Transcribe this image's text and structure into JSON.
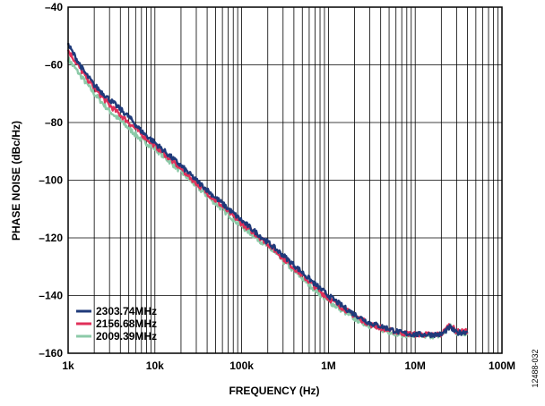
{
  "chart_data": {
    "type": "line",
    "xlabel": "FREQUENCY (Hz)",
    "ylabel": "PHASE NOISE (dBc/Hz)",
    "x_scale": "log",
    "xlim": [
      1000,
      100000000
    ],
    "ylim": [
      -160,
      -40
    ],
    "x_ticks": [
      {
        "value": 1000,
        "label": "1k"
      },
      {
        "value": 10000,
        "label": "10k"
      },
      {
        "value": 100000,
        "label": "100k"
      },
      {
        "value": 1000000,
        "label": "1M"
      },
      {
        "value": 10000000,
        "label": "10M"
      },
      {
        "value": 100000000,
        "label": "100M"
      }
    ],
    "y_ticks": [
      {
        "value": -40,
        "label": "–40"
      },
      {
        "value": -60,
        "label": "–60"
      },
      {
        "value": -80,
        "label": "–80"
      },
      {
        "value": -100,
        "label": "–100"
      },
      {
        "value": -120,
        "label": "–120"
      },
      {
        "value": -140,
        "label": "–140"
      },
      {
        "value": -160,
        "label": "–160"
      }
    ],
    "grid": true,
    "legend_position": "bottom-left",
    "figure_id": "12488-032",
    "series": [
      {
        "name": "2303.74MHz",
        "color": "#1f3a7a",
        "x": [
          1000,
          1500,
          2000,
          3000,
          5000,
          7000,
          10000,
          20000,
          30000,
          50000,
          100000,
          200000,
          300000,
          500000,
          700000,
          1000000,
          1500000,
          2000000,
          3000000,
          5000000,
          7000000,
          10000000,
          15000000,
          20000000,
          25000000,
          30000000,
          40000000
        ],
        "y": [
          -53,
          -62,
          -67,
          -72,
          -78,
          -83,
          -87,
          -95,
          -100,
          -106,
          -114,
          -121.5,
          -126,
          -132,
          -136,
          -140,
          -144,
          -146.5,
          -149.5,
          -151.5,
          -153,
          -153.5,
          -153.5,
          -153.5,
          -151,
          -153,
          -152.5
        ]
      },
      {
        "name": "2156.68MHz",
        "color": "#e0305a",
        "x": [
          1000,
          1500,
          2000,
          3000,
          5000,
          7000,
          10000,
          20000,
          30000,
          50000,
          100000,
          200000,
          300000,
          500000,
          700000,
          1000000,
          1500000,
          2000000,
          3000000,
          5000000,
          7000000,
          10000000,
          15000000,
          20000000,
          25000000,
          30000000,
          40000000
        ],
        "y": [
          -55,
          -63,
          -68,
          -74,
          -80,
          -84,
          -88,
          -96,
          -101,
          -107,
          -115,
          -122,
          -127,
          -133,
          -137,
          -141,
          -144.5,
          -147,
          -150,
          -152,
          -153,
          -153.5,
          -153.5,
          -153.5,
          -150,
          -152.5,
          -152.5
        ]
      },
      {
        "name": "2009.39MHz",
        "color": "#8ccaa8",
        "x": [
          1000,
          1500,
          2000,
          3000,
          5000,
          7000,
          10000,
          20000,
          30000,
          50000,
          100000,
          200000,
          300000,
          500000,
          700000,
          1000000,
          1500000,
          2000000,
          3000000,
          5000000,
          7000000,
          10000000,
          15000000,
          20000000,
          25000000,
          30000000,
          40000000
        ],
        "y": [
          -58,
          -65,
          -70,
          -76,
          -82,
          -86,
          -89,
          -97,
          -102,
          -108,
          -116,
          -123,
          -128,
          -134,
          -138,
          -142,
          -145.5,
          -148,
          -150.5,
          -152.5,
          -153.5,
          -154,
          -154,
          -154,
          -150.5,
          -153,
          -153
        ]
      }
    ]
  }
}
